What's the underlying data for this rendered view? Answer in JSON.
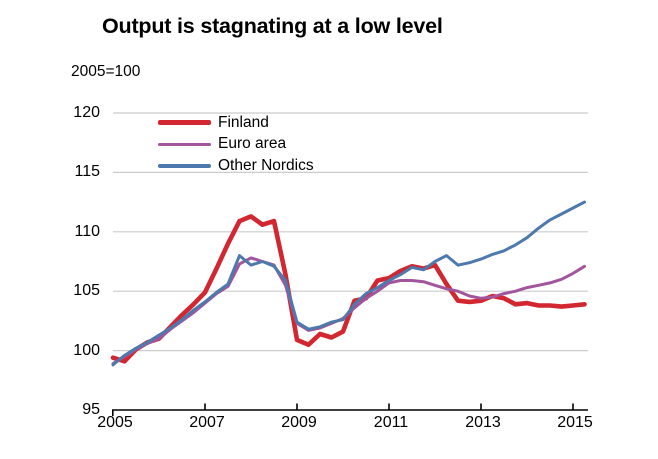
{
  "title": "Output is stagnating at a low level",
  "unit_label": "2005=100",
  "colors": {
    "finland": "#d22730",
    "euro_area": "#a2559d",
    "other_nordics": "#4d79ad",
    "gridline": "#cccccc",
    "axis": "#000000",
    "text": "#000000",
    "background": "#ffffff"
  },
  "chart_data": {
    "type": "line",
    "title": "Output is stagnating at a low level",
    "subtitle": "2005=100",
    "xlabel": "",
    "ylabel": "",
    "grid": true,
    "legend_position": "top-left",
    "ylim": [
      95,
      120
    ],
    "xlim": [
      2005.0,
      2015.55
    ],
    "yticks": [
      95,
      100,
      105,
      110,
      115,
      120
    ],
    "xticks": [
      2005,
      2007,
      2009,
      2011,
      2013,
      2015
    ],
    "x": [
      2005.0,
      2005.25,
      2005.5,
      2005.75,
      2006.0,
      2006.25,
      2006.5,
      2006.75,
      2007.0,
      2007.25,
      2007.5,
      2007.75,
      2008.0,
      2008.25,
      2008.5,
      2008.75,
      2009.0,
      2009.25,
      2009.5,
      2009.75,
      2010.0,
      2010.25,
      2010.5,
      2010.75,
      2011.0,
      2011.25,
      2011.5,
      2011.75,
      2012.0,
      2012.25,
      2012.5,
      2012.75,
      2013.0,
      2013.25,
      2013.5,
      2013.75,
      2014.0,
      2014.25,
      2014.5,
      2014.75,
      2015.0,
      2015.25
    ],
    "series": [
      {
        "name": "Finland",
        "color": "#d22730",
        "stroke_width": 4.6,
        "values": [
          99.4,
          99.1,
          100.1,
          100.7,
          101.0,
          102.0,
          103.0,
          103.9,
          104.9,
          106.9,
          109.0,
          110.9,
          111.3,
          110.6,
          110.9,
          106.4,
          100.9,
          100.5,
          101.4,
          101.1,
          101.6,
          104.2,
          104.4,
          105.9,
          106.1,
          106.7,
          107.1,
          106.9,
          107.2,
          105.6,
          104.2,
          104.1,
          104.2,
          104.6,
          104.4,
          103.9,
          104.0,
          103.8,
          103.8,
          103.7,
          103.8,
          103.9
        ]
      },
      {
        "name": "Euro area",
        "color": "#a2559d",
        "stroke_width": 3.0,
        "values": [
          98.9,
          99.5,
          100.1,
          100.6,
          101.0,
          101.8,
          102.5,
          103.2,
          104.0,
          104.8,
          105.4,
          107.3,
          107.8,
          107.5,
          107.2,
          105.5,
          102.3,
          101.7,
          101.9,
          102.3,
          102.7,
          103.6,
          104.4,
          105.0,
          105.7,
          105.9,
          105.9,
          105.8,
          105.5,
          105.2,
          105.0,
          104.6,
          104.4,
          104.5,
          104.8,
          105.0,
          105.3,
          105.5,
          105.7,
          106.0,
          106.5,
          107.1
        ]
      },
      {
        "name": "Other Nordics",
        "color": "#4d79ad",
        "stroke_width": 3.0,
        "values": [
          98.8,
          99.6,
          100.2,
          100.7,
          101.3,
          101.9,
          102.6,
          103.4,
          104.1,
          104.9,
          105.6,
          108.0,
          107.2,
          107.5,
          107.1,
          105.9,
          102.4,
          101.8,
          102.0,
          102.4,
          102.6,
          103.9,
          104.8,
          105.3,
          105.9,
          106.4,
          107.0,
          106.8,
          107.5,
          108.0,
          107.2,
          107.4,
          107.7,
          108.1,
          108.4,
          108.9,
          109.5,
          110.3,
          111.0,
          111.5,
          112.0,
          112.5
        ]
      }
    ]
  }
}
